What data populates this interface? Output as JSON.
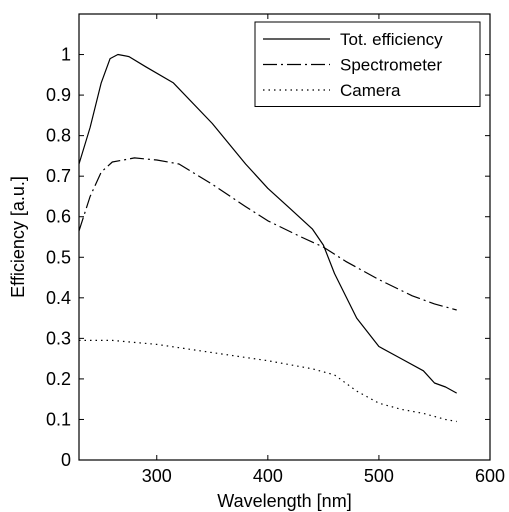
{
  "chart_data": {
    "type": "line",
    "xlabel": "Wavelength [nm]",
    "ylabel": "Efficiency [a.u.]",
    "xlim": [
      230,
      600
    ],
    "ylim": [
      0,
      1.1
    ],
    "xticks": [
      300,
      400,
      500,
      600
    ],
    "yticks": [
      0,
      0.1,
      0.2,
      0.3,
      0.4,
      0.5,
      0.6,
      0.7,
      0.8,
      0.9,
      1
    ],
    "grid": false,
    "legend_position": "top-right",
    "series": [
      {
        "name": "Tot. efficiency",
        "style": "solid",
        "x": [
          230,
          240,
          250,
          258,
          265,
          275,
          290,
          315,
          350,
          380,
          400,
          420,
          440,
          450,
          460,
          480,
          500,
          520,
          540,
          550,
          560,
          570
        ],
        "y": [
          0.73,
          0.82,
          0.93,
          0.99,
          1.0,
          0.995,
          0.97,
          0.93,
          0.83,
          0.73,
          0.67,
          0.62,
          0.57,
          0.53,
          0.46,
          0.35,
          0.28,
          0.25,
          0.22,
          0.19,
          0.18,
          0.165
        ]
      },
      {
        "name": "Spectrometer",
        "style": "dashdot",
        "x": [
          230,
          240,
          250,
          260,
          270,
          280,
          300,
          320,
          350,
          380,
          400,
          430,
          450,
          470,
          500,
          530,
          550,
          570
        ],
        "y": [
          0.565,
          0.65,
          0.71,
          0.735,
          0.74,
          0.745,
          0.74,
          0.73,
          0.68,
          0.625,
          0.59,
          0.55,
          0.525,
          0.49,
          0.445,
          0.405,
          0.385,
          0.37
        ]
      },
      {
        "name": "Camera",
        "style": "dotted",
        "x": [
          230,
          260,
          300,
          350,
          400,
          440,
          460,
          480,
          500,
          520,
          540,
          560,
          570
        ],
        "y": [
          0.295,
          0.295,
          0.285,
          0.265,
          0.245,
          0.225,
          0.21,
          0.17,
          0.14,
          0.125,
          0.115,
          0.1,
          0.095
        ]
      }
    ]
  }
}
